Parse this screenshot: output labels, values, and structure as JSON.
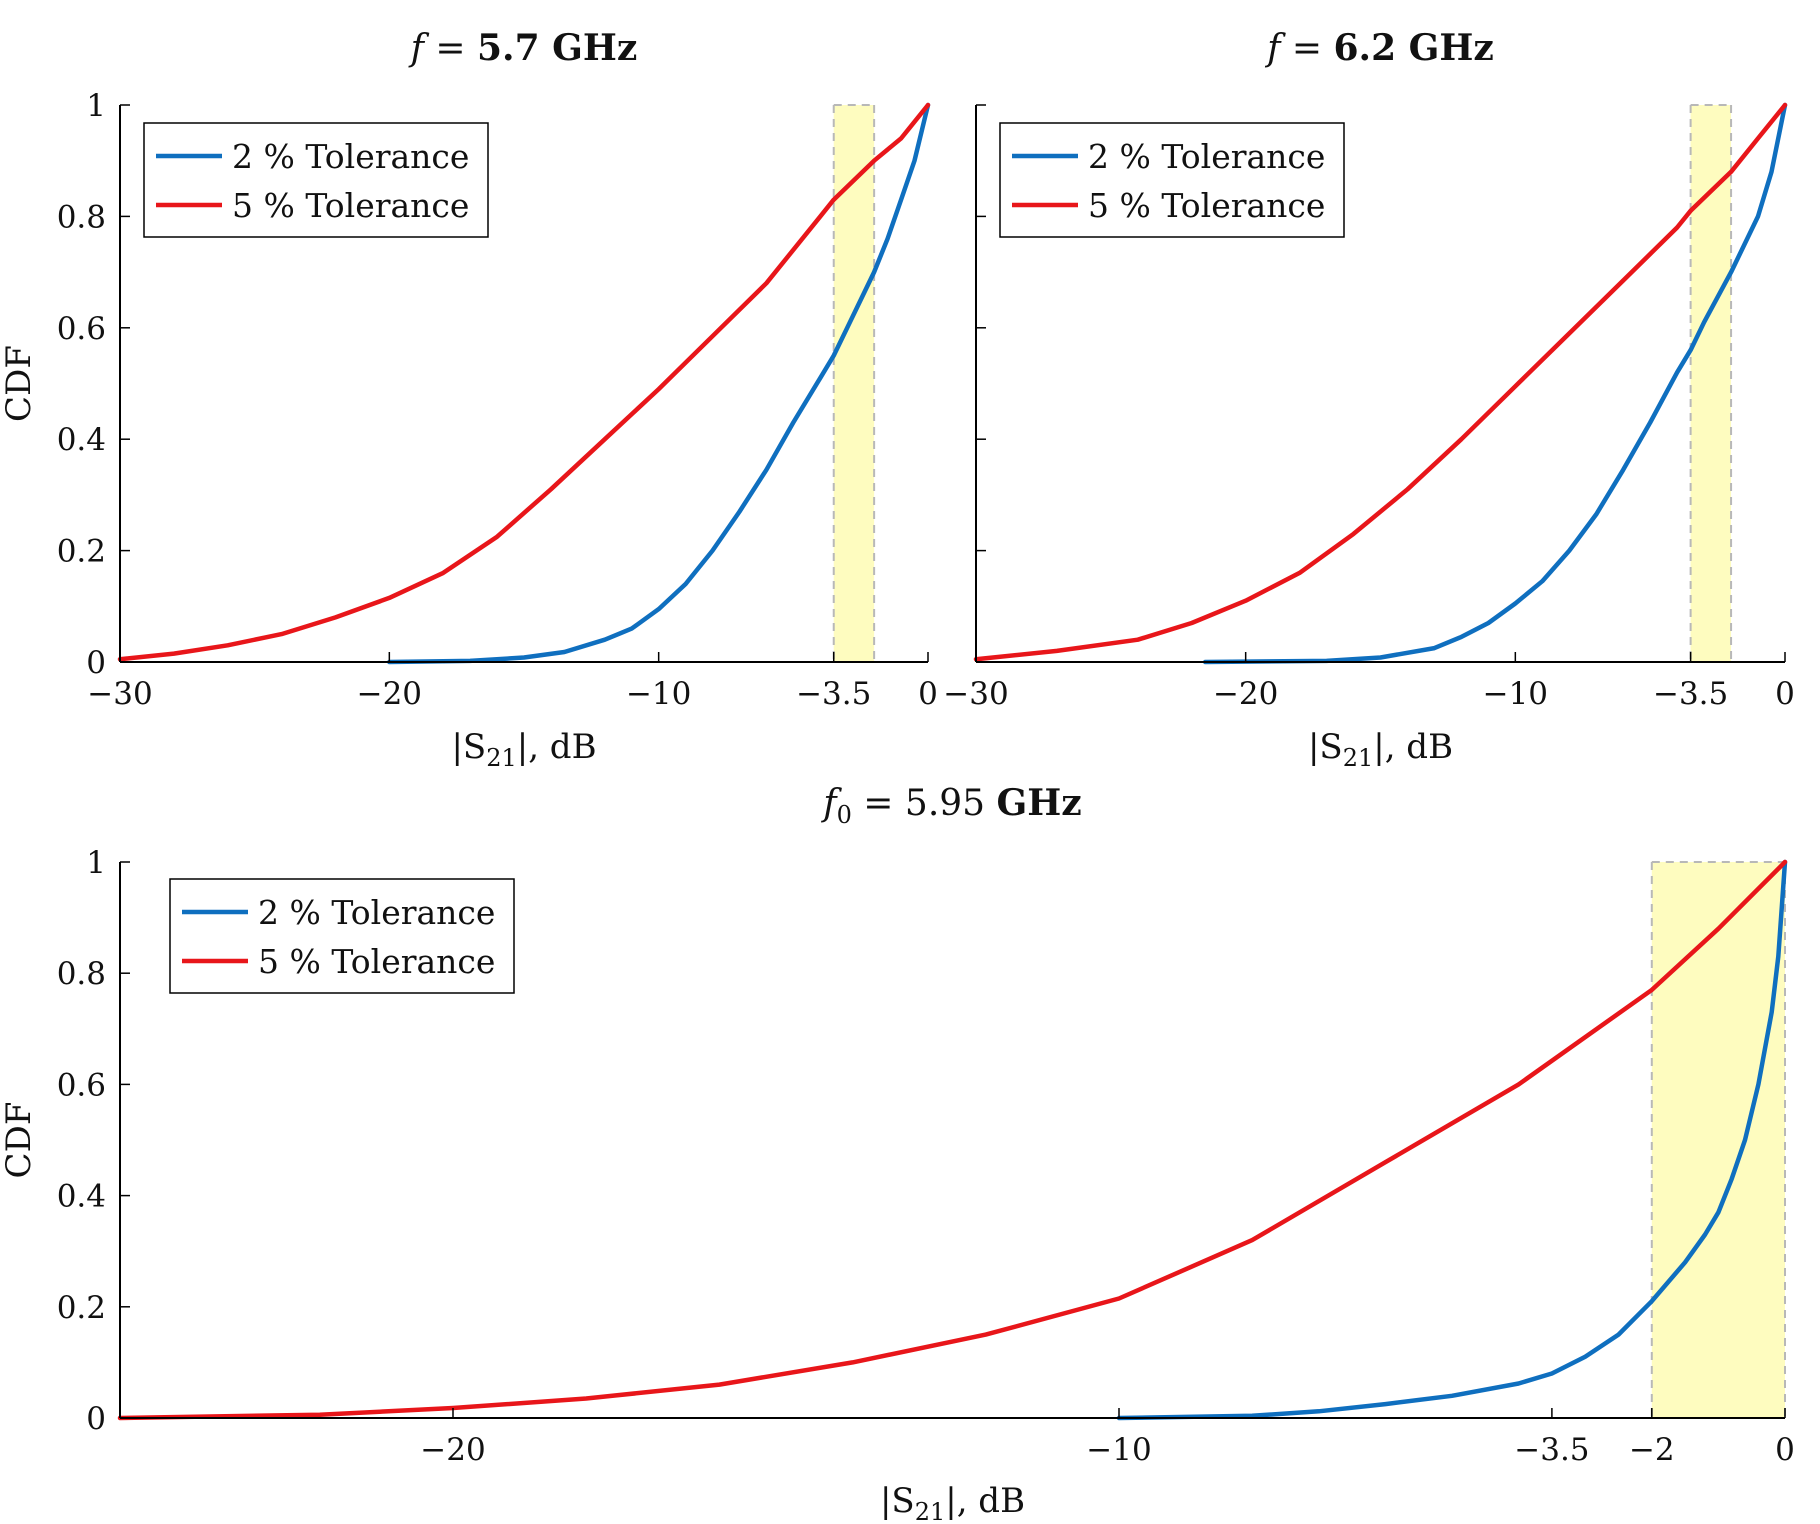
{
  "colors": {
    "series_2pct": "#0f6fbf",
    "series_5pct": "#e8161a",
    "highlight_fill": "#fefcbf",
    "highlight_edge": "#b8b8b8",
    "axis": "#000000"
  },
  "chart_data": [
    {
      "type": "line",
      "title": "f = 5.7 GHz",
      "xlabel": "|S21|, dB",
      "ylabel": "CDF",
      "xlim": [
        -30,
        0
      ],
      "ylim": [
        0,
        1
      ],
      "xticks": [
        -30,
        -20,
        -10,
        -3.5,
        0
      ],
      "xtick_labels": [
        "−30",
        "−20",
        "−10",
        "−3.5",
        "0"
      ],
      "yticks": [
        0,
        0.2,
        0.4,
        0.6,
        0.8,
        1
      ],
      "ytick_labels": [
        "0",
        "0.2",
        "0.4",
        "0.6",
        "0.8",
        "1"
      ],
      "legend_position": "top-left",
      "highlight_band": [
        -3.5,
        -2
      ],
      "grid": false,
      "series": [
        {
          "name": "2 % Tolerance",
          "color": "#0f6fbf",
          "x": [
            -20,
            -17,
            -15,
            -13.5,
            -12,
            -11,
            -10,
            -9,
            -8,
            -7,
            -6,
            -5,
            -4,
            -3.5,
            -3,
            -2.5,
            -2,
            -1.5,
            -1,
            -0.5,
            0
          ],
          "y": [
            0,
            0.002,
            0.008,
            0.018,
            0.04,
            0.06,
            0.095,
            0.14,
            0.2,
            0.27,
            0.345,
            0.43,
            0.51,
            0.55,
            0.6,
            0.65,
            0.7,
            0.76,
            0.83,
            0.9,
            1.0
          ]
        },
        {
          "name": "5 % Tolerance",
          "color": "#e8161a",
          "x": [
            -30,
            -28,
            -26,
            -24,
            -22,
            -20,
            -18,
            -16,
            -14,
            -12,
            -10,
            -8,
            -6,
            -4,
            -3.5,
            -2,
            -1,
            0
          ],
          "y": [
            0.005,
            0.015,
            0.03,
            0.05,
            0.08,
            0.115,
            0.16,
            0.225,
            0.31,
            0.4,
            0.49,
            0.585,
            0.68,
            0.8,
            0.83,
            0.9,
            0.94,
            1.0
          ]
        }
      ]
    },
    {
      "type": "line",
      "title": "f = 6.2 GHz",
      "xlabel": "|S21|, dB",
      "ylabel": "",
      "xlim": [
        -30,
        0
      ],
      "ylim": [
        0,
        1
      ],
      "xticks": [
        -30,
        -20,
        -10,
        -3.5,
        0
      ],
      "xtick_labels": [
        "−30",
        "−20",
        "−10",
        "−3.5",
        "0"
      ],
      "yticks": [
        0,
        0.2,
        0.4,
        0.6,
        0.8,
        1
      ],
      "ytick_labels": [],
      "legend_position": "top-left",
      "highlight_band": [
        -3.5,
        -2
      ],
      "grid": false,
      "series": [
        {
          "name": "2 % Tolerance",
          "color": "#0f6fbf",
          "x": [
            -21.5,
            -17,
            -15,
            -13,
            -12,
            -11,
            -10,
            -9,
            -8,
            -7,
            -6,
            -5,
            -4,
            -3.5,
            -3,
            -2,
            -1,
            -0.5,
            0
          ],
          "y": [
            0,
            0.002,
            0.008,
            0.025,
            0.045,
            0.07,
            0.105,
            0.145,
            0.2,
            0.265,
            0.345,
            0.43,
            0.52,
            0.56,
            0.61,
            0.7,
            0.8,
            0.88,
            1.0
          ]
        },
        {
          "name": "5 % Tolerance",
          "color": "#e8161a",
          "x": [
            -30,
            -27,
            -24,
            -22,
            -20,
            -18,
            -16,
            -14,
            -12,
            -10,
            -8,
            -6,
            -4,
            -3.5,
            -2,
            -1,
            0
          ],
          "y": [
            0.005,
            0.02,
            0.04,
            0.07,
            0.11,
            0.16,
            0.23,
            0.31,
            0.4,
            0.495,
            0.59,
            0.685,
            0.78,
            0.81,
            0.88,
            0.94,
            1.0
          ]
        }
      ]
    },
    {
      "type": "line",
      "title": "f0 = 5.95 GHz",
      "xlabel": "|S21|, dB",
      "ylabel": "CDF",
      "xlim": [
        -25,
        0
      ],
      "ylim": [
        0,
        1
      ],
      "xticks": [
        -20,
        -10,
        -3.5,
        -2,
        0
      ],
      "xtick_labels": [
        "−20",
        "−10",
        "−3.5",
        "−2",
        "0"
      ],
      "yticks": [
        0,
        0.2,
        0.4,
        0.6,
        0.8,
        1
      ],
      "ytick_labels": [
        "0",
        "0.2",
        "0.4",
        "0.6",
        "0.8",
        "1"
      ],
      "legend_position": "top-left",
      "highlight_band": [
        -2,
        0
      ],
      "grid": false,
      "series": [
        {
          "name": "2 % Tolerance",
          "color": "#0f6fbf",
          "x": [
            -10,
            -8,
            -7,
            -6,
            -5,
            -4,
            -3.5,
            -3,
            -2.5,
            -2,
            -1.5,
            -1.2,
            -1,
            -0.8,
            -0.6,
            -0.4,
            -0.2,
            -0.1,
            0
          ],
          "y": [
            0,
            0.004,
            0.012,
            0.025,
            0.04,
            0.062,
            0.08,
            0.11,
            0.15,
            0.21,
            0.28,
            0.33,
            0.37,
            0.43,
            0.5,
            0.6,
            0.73,
            0.83,
            1.0
          ]
        },
        {
          "name": "5 % Tolerance",
          "color": "#e8161a",
          "x": [
            -25,
            -22,
            -20,
            -18,
            -16,
            -14,
            -12,
            -10,
            -8,
            -6,
            -4,
            -2,
            -1,
            0
          ],
          "y": [
            0,
            0.006,
            0.018,
            0.035,
            0.06,
            0.1,
            0.15,
            0.215,
            0.32,
            0.46,
            0.6,
            0.77,
            0.88,
            1.0
          ]
        }
      ]
    }
  ]
}
